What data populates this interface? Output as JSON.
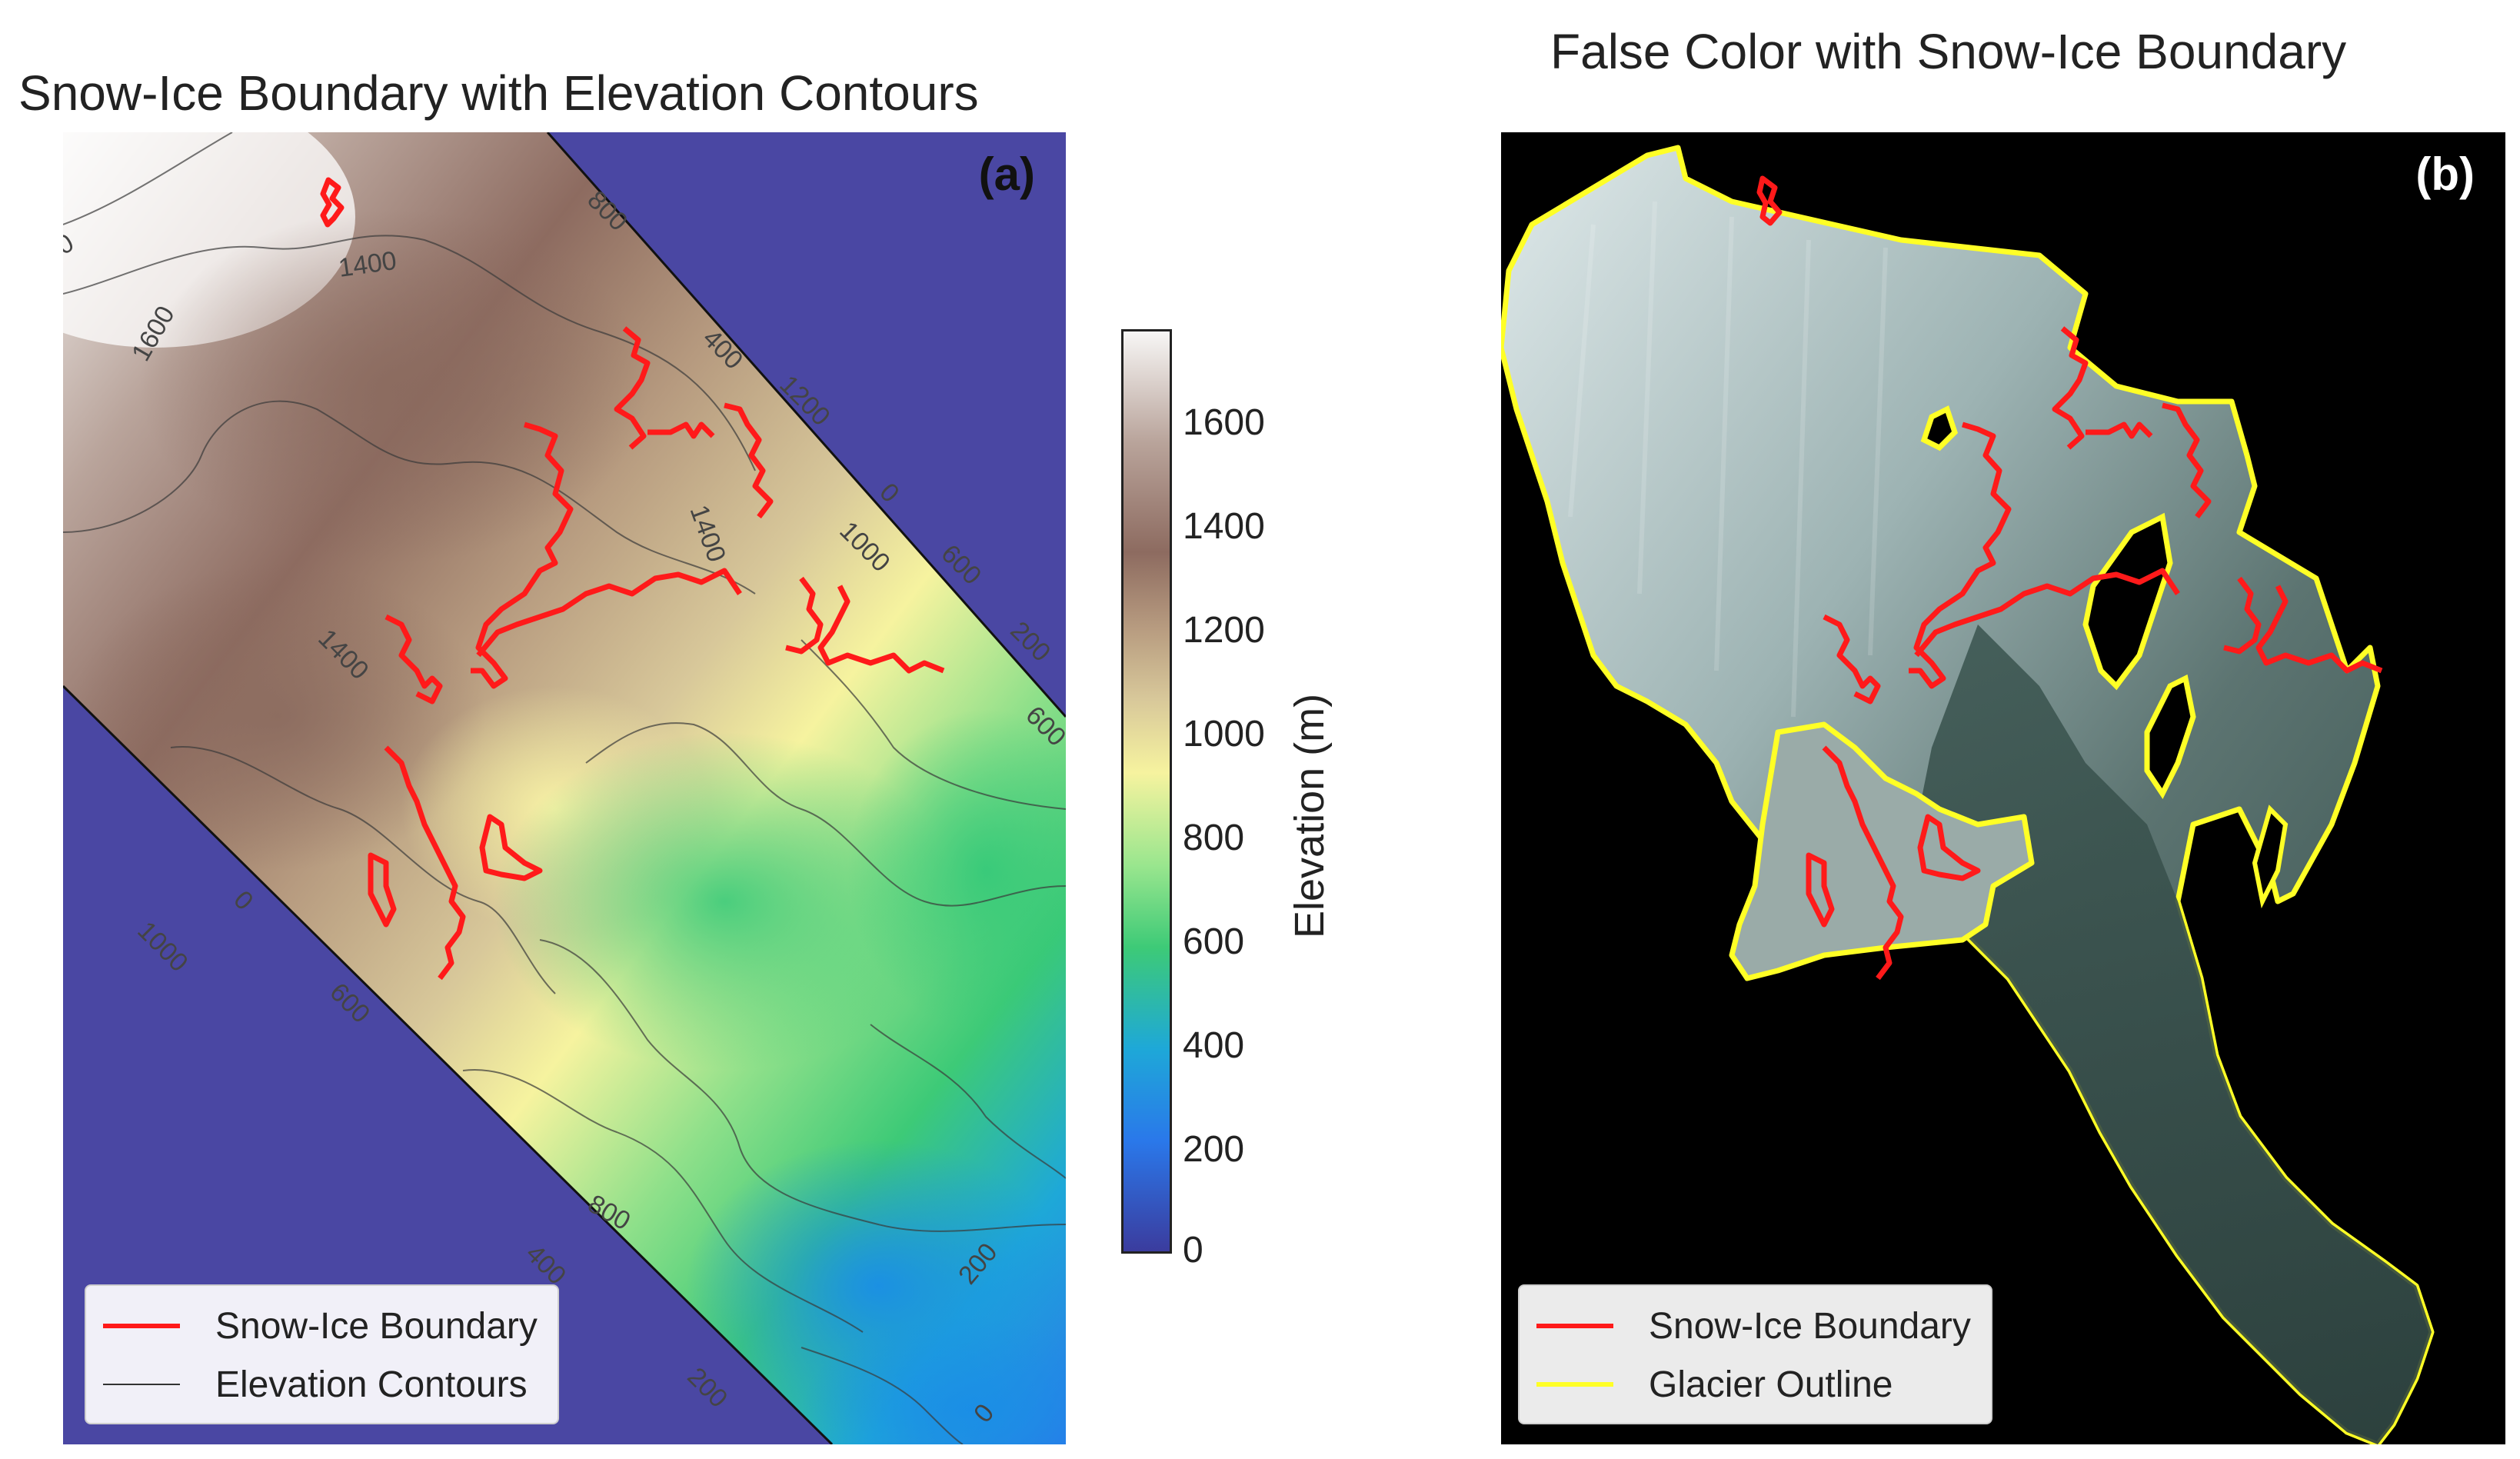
{
  "panel_a": {
    "title": "Snow-Ice Boundary with Elevation Contours",
    "label": "(a)",
    "contour_labels": [
      "1400",
      "1600",
      "1000",
      "0",
      "800",
      "400",
      "1200",
      "0",
      "600",
      "200",
      "600",
      "1400",
      "1400",
      "1000",
      "0",
      "600",
      "800",
      "400",
      "200",
      "200",
      "0"
    ],
    "legend": {
      "boundary": "Snow-Ice Boundary",
      "contours": "Elevation Contours"
    }
  },
  "colorbar": {
    "label": "Elevation (m)",
    "ticks": [
      "1600",
      "1400",
      "1200",
      "1000",
      "800",
      "600",
      "400",
      "200",
      "0"
    ],
    "range": [
      0,
      1760
    ]
  },
  "panel_b": {
    "title": "False Color with Snow-Ice Boundary",
    "label": "(b)",
    "legend": {
      "boundary": "Snow-Ice Boundary",
      "outline": "Glacier Outline"
    }
  },
  "colors": {
    "boundary": "#ff1a1a",
    "outline": "#ffff26",
    "background_dem": "#4a47a3",
    "background_false": "#000000"
  }
}
